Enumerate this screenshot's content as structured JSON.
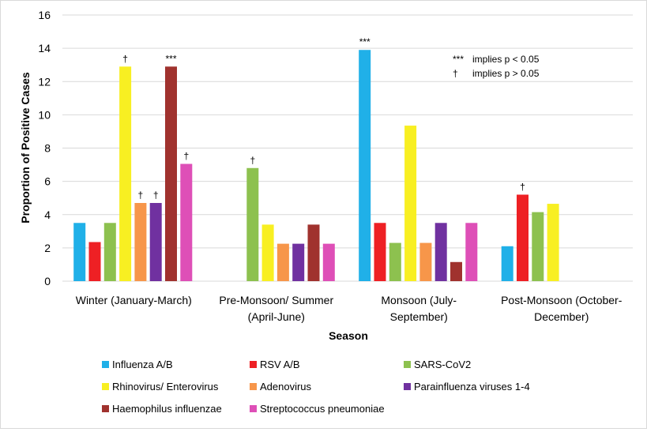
{
  "chart_data": {
    "type": "bar",
    "title": "",
    "xlabel": "Season",
    "ylabel": "Proportion of Positive Cases",
    "ylim": [
      0,
      16
    ],
    "yticks": [
      0,
      2,
      4,
      6,
      8,
      10,
      12,
      14,
      16
    ],
    "grid": true,
    "legend_position": "bottom",
    "categories": [
      [
        "Winter (January-March)"
      ],
      [
        "Pre-Monsoon/ Summer",
        "(April-June)"
      ],
      [
        "Monsoon (July-",
        "September)"
      ],
      [
        "Post-Monsoon (October-",
        "December)"
      ]
    ],
    "series": [
      {
        "name": "Influenza A/B",
        "color": "#20b0e8",
        "values": [
          3.5,
          null,
          13.9,
          2.1
        ],
        "marks": [
          "",
          "",
          "***",
          ""
        ]
      },
      {
        "name": "RSV A/B",
        "color": "#ee2024",
        "values": [
          2.35,
          null,
          3.5,
          5.2
        ],
        "marks": [
          "",
          "",
          "",
          "†"
        ]
      },
      {
        "name": "SARS-CoV2",
        "color": "#8dc14f",
        "values": [
          3.5,
          6.8,
          2.3,
          4.15
        ],
        "marks": [
          "",
          "†",
          "",
          ""
        ]
      },
      {
        "name": "Rhinovirus/ Enterovirus",
        "color": "#f8ef22",
        "values": [
          12.9,
          3.4,
          9.35,
          4.65
        ],
        "marks": [
          "†",
          "",
          "",
          ""
        ]
      },
      {
        "name": "Adenovirus",
        "color": "#f7964a",
        "values": [
          4.7,
          2.25,
          2.3,
          null
        ],
        "marks": [
          "†",
          "",
          "",
          ""
        ]
      },
      {
        "name": "Parainfluenza viruses 1-4",
        "color": "#7031a0",
        "values": [
          4.7,
          2.25,
          3.5,
          null
        ],
        "marks": [
          "†",
          "",
          "",
          ""
        ]
      },
      {
        "name": "Haemophilus influenzae",
        "color": "#a0322e",
        "values": [
          12.9,
          3.4,
          1.15,
          null
        ],
        "marks": [
          "***",
          "",
          "",
          ""
        ]
      },
      {
        "name": "Streptococcus pneumoniae",
        "color": "#de4fb7",
        "values": [
          7.05,
          2.25,
          3.5,
          null
        ],
        "marks": [
          "†",
          "",
          "",
          ""
        ]
      }
    ],
    "annotations": [
      {
        "symbol": "***",
        "text": "implies p < 0.05"
      },
      {
        "symbol": "†",
        "text": "implies p > 0.05"
      }
    ]
  }
}
